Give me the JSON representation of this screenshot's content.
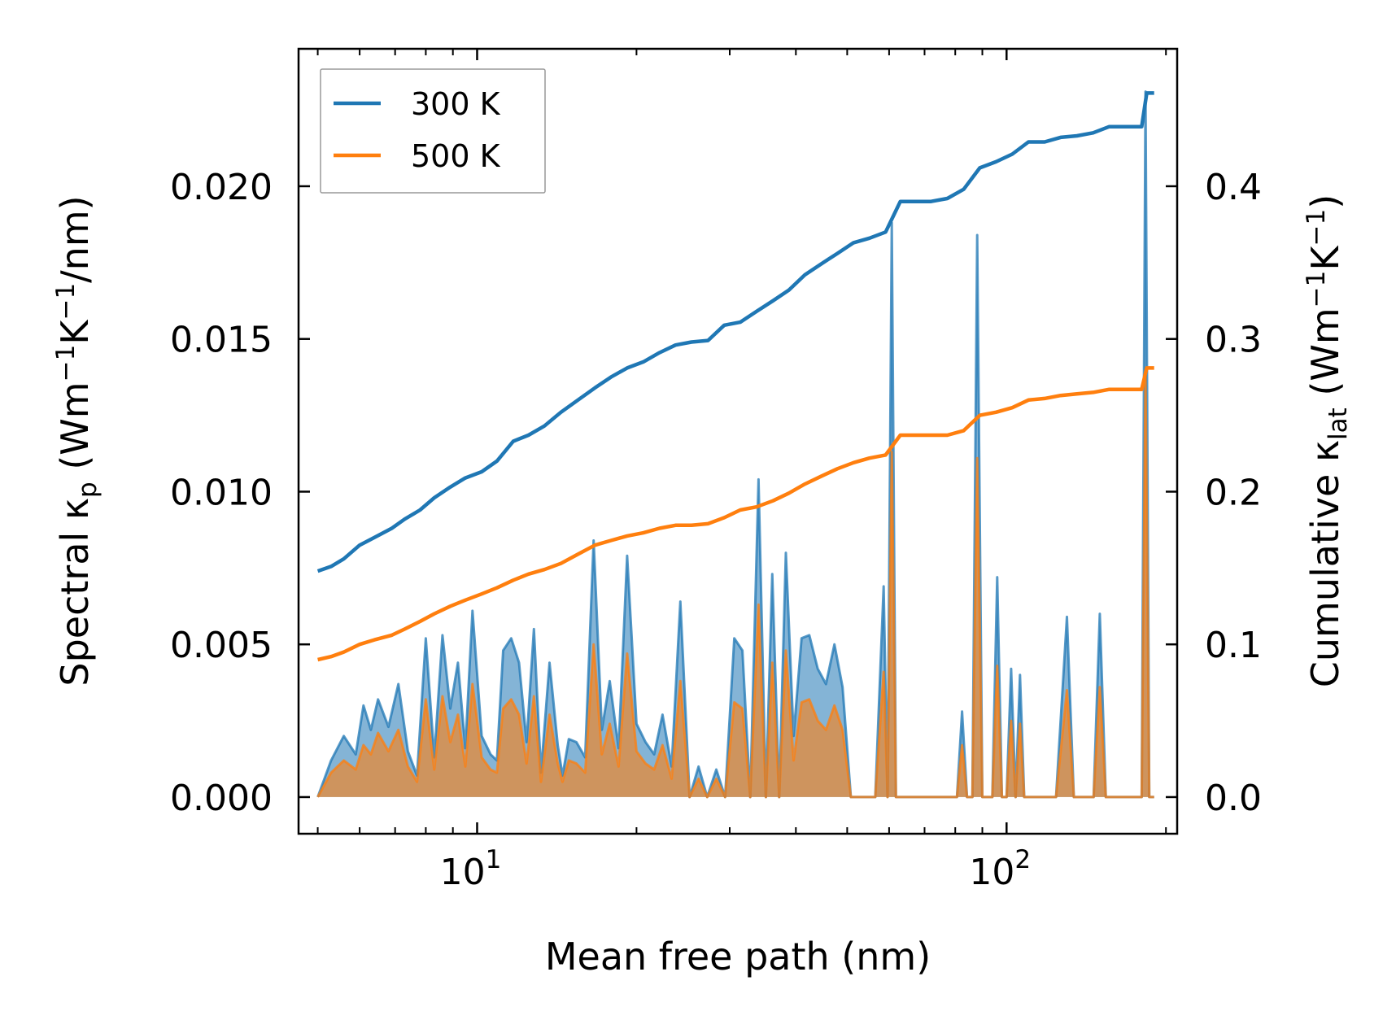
{
  "chart_data": {
    "type": "line",
    "xlabel": "Mean free path (nm)",
    "ylabel_left": {
      "main": "Spectral κ",
      "sub": "p",
      "unit_open": " (Wm",
      "sup1": "−1",
      "unit_k": "K",
      "sup2": "−1",
      "unit_close": "/nm)"
    },
    "ylabel_right": {
      "main": "Cumulative κ",
      "sub": "lat",
      "unit_open": " (Wm",
      "sup1": "−1",
      "unit_k": "K",
      "sup2": "−1",
      "unit_close": ")"
    },
    "x_scale": "log",
    "xlim": [
      4.6,
      210
    ],
    "ylim_left": [
      -0.0012,
      0.0245
    ],
    "ylim_right": [
      -0.024,
      0.49
    ],
    "x_major_ticks": [
      {
        "value": 10,
        "base": "10",
        "exp": "1"
      },
      {
        "value": 100,
        "base": "10",
        "exp": "2"
      }
    ],
    "y_left_ticks": [
      {
        "value": 0.0,
        "label": "0.000"
      },
      {
        "value": 0.005,
        "label": "0.005"
      },
      {
        "value": 0.01,
        "label": "0.010"
      },
      {
        "value": 0.015,
        "label": "0.015"
      },
      {
        "value": 0.02,
        "label": "0.020"
      }
    ],
    "y_right_ticks": [
      {
        "value": 0.0,
        "label": "0.0"
      },
      {
        "value": 0.1,
        "label": "0.1"
      },
      {
        "value": 0.2,
        "label": "0.2"
      },
      {
        "value": 0.3,
        "label": "0.3"
      },
      {
        "value": 0.4,
        "label": "0.4"
      }
    ],
    "legend": {
      "position": "upper left",
      "entries": [
        {
          "name": "300 K",
          "color": "#1f77b4"
        },
        {
          "name": "500 K",
          "color": "#ff7f0e"
        }
      ]
    },
    "series": [
      {
        "name": "300 K",
        "color": "#1f77b4",
        "cumulative_right_axis": {
          "x": [
            5.0,
            5.3,
            5.6,
            6.0,
            6.4,
            6.9,
            7.3,
            7.8,
            8.3,
            8.9,
            9.5,
            10.2,
            10.9,
            11.7,
            12.5,
            13.4,
            14.4,
            15.5,
            16.7,
            17.9,
            19.2,
            20.6,
            22.1,
            23.7,
            25.4,
            27.3,
            29.3,
            31.4,
            33.7,
            36.2,
            38.8,
            41.6,
            44.6,
            47.9,
            51.4,
            55.1,
            59.1,
            63.0,
            67.0,
            72.0,
            77.3,
            83.0,
            89.0,
            95.5,
            102.5,
            110.0,
            118.0,
            126.5,
            135.8,
            145.7,
            156.3,
            167.7,
            180.0,
            184.0,
            190.0
          ],
          "y": [
            0.148,
            0.151,
            0.156,
            0.165,
            0.17,
            0.176,
            0.182,
            0.188,
            0.196,
            0.203,
            0.209,
            0.213,
            0.22,
            0.233,
            0.237,
            0.243,
            0.252,
            0.26,
            0.268,
            0.275,
            0.281,
            0.285,
            0.291,
            0.296,
            0.298,
            0.299,
            0.309,
            0.311,
            0.318,
            0.325,
            0.332,
            0.342,
            0.349,
            0.356,
            0.363,
            0.366,
            0.37,
            0.39,
            0.39,
            0.39,
            0.392,
            0.398,
            0.412,
            0.416,
            0.421,
            0.429,
            0.429,
            0.432,
            0.433,
            0.435,
            0.439,
            0.439,
            0.439,
            0.461,
            0.461
          ]
        },
        "spectral_left_axis": {
          "x": [
            5.0,
            5.3,
            5.6,
            5.9,
            6.1,
            6.3,
            6.5,
            6.8,
            7.1,
            7.4,
            7.7,
            8.0,
            8.3,
            8.6,
            8.9,
            9.2,
            9.5,
            9.8,
            10.2,
            10.6,
            10.9,
            11.2,
            11.6,
            12.0,
            12.4,
            12.8,
            13.2,
            13.7,
            14.2,
            14.5,
            14.9,
            15.4,
            16.0,
            16.6,
            17.2,
            17.8,
            18.5,
            19.2,
            20.0,
            20.8,
            21.6,
            22.4,
            23.3,
            24.2,
            25.2,
            26.2,
            27.2,
            28.3,
            29.4,
            30.6,
            31.7,
            32.8,
            34.0,
            35.1,
            36.1,
            37.2,
            38.3,
            39.6,
            41.0,
            42.4,
            44.0,
            45.6,
            47.3,
            49.0,
            50.8,
            52.6,
            54.5,
            56.5,
            58.6,
            59.6,
            60.7,
            61.8,
            62.9,
            64.1,
            65.3,
            68.0,
            72.0,
            76.2,
            80.6,
            82.4,
            84.2,
            86.2,
            88.0,
            90.0,
            92.0,
            94.0,
            96.0,
            98.0,
            100.0,
            102.0,
            104.0,
            106.0,
            108.0,
            110.0,
            112.0,
            114.0,
            118.0,
            124.0,
            130.0,
            134.0,
            138.0,
            142.0,
            146.0,
            150.0,
            154.0,
            158.0,
            164.0,
            170.0,
            176.0,
            180.0,
            183.0,
            186.0,
            189.0,
            190.0
          ],
          "y": [
            0.0,
            0.0012,
            0.002,
            0.0014,
            0.003,
            0.0022,
            0.0032,
            0.0023,
            0.0037,
            0.0015,
            0.0007,
            0.0052,
            0.0013,
            0.0053,
            0.0029,
            0.0044,
            0.0016,
            0.0061,
            0.002,
            0.0014,
            0.0012,
            0.0048,
            0.0052,
            0.0044,
            0.0018,
            0.0055,
            0.0008,
            0.0044,
            0.0017,
            0.0007,
            0.0019,
            0.0018,
            0.0013,
            0.0084,
            0.0022,
            0.0038,
            0.0016,
            0.0079,
            0.0024,
            0.0018,
            0.0014,
            0.0027,
            0.001,
            0.0064,
            0.0,
            0.001,
            0.0,
            0.0009,
            0.0,
            0.0052,
            0.0048,
            0.0,
            0.0104,
            0.0,
            0.0073,
            0.0,
            0.008,
            0.002,
            0.0052,
            0.0053,
            0.0042,
            0.0037,
            0.005,
            0.0036,
            0.0,
            0.0,
            0.0,
            0.0,
            0.0069,
            0.0,
            0.0188,
            0.0,
            0.0,
            0.0,
            0.0,
            0.0,
            0.0,
            0.0,
            0.0,
            0.0028,
            0.0,
            0.0,
            0.0184,
            0.0,
            0.0,
            0.0,
            0.0072,
            0.0,
            0.0,
            0.0042,
            0.0,
            0.004,
            0.0,
            0.0,
            0.0,
            0.0,
            0.0,
            0.0,
            0.0059,
            0.0,
            0.0,
            0.0,
            0.0,
            0.006,
            0.0,
            0.0,
            0.0,
            0.0,
            0.0,
            0.0,
            0.0231,
            0.0,
            0.0,
            0.0
          ]
        }
      },
      {
        "name": "500 K",
        "color": "#ff7f0e",
        "cumulative_right_axis": {
          "x": [
            5.0,
            5.3,
            5.6,
            6.0,
            6.4,
            6.9,
            7.3,
            7.8,
            8.3,
            8.9,
            9.5,
            10.2,
            10.9,
            11.7,
            12.5,
            13.4,
            14.4,
            15.5,
            16.7,
            17.9,
            19.2,
            20.6,
            22.1,
            23.7,
            25.4,
            27.3,
            29.3,
            31.4,
            33.7,
            36.2,
            38.8,
            41.6,
            44.6,
            47.9,
            51.4,
            55.1,
            59.1,
            63.0,
            67.0,
            72.0,
            77.3,
            83.0,
            89.0,
            95.5,
            102.5,
            110.0,
            118.0,
            126.5,
            135.8,
            145.7,
            156.3,
            167.7,
            180.0,
            184.0,
            190.0
          ],
          "y": [
            0.09,
            0.092,
            0.095,
            0.1,
            0.103,
            0.106,
            0.11,
            0.115,
            0.12,
            0.125,
            0.129,
            0.133,
            0.137,
            0.142,
            0.146,
            0.149,
            0.153,
            0.159,
            0.165,
            0.168,
            0.171,
            0.173,
            0.176,
            0.178,
            0.178,
            0.179,
            0.183,
            0.188,
            0.19,
            0.194,
            0.199,
            0.205,
            0.21,
            0.215,
            0.219,
            0.222,
            0.224,
            0.237,
            0.237,
            0.237,
            0.237,
            0.24,
            0.25,
            0.252,
            0.255,
            0.26,
            0.261,
            0.263,
            0.264,
            0.265,
            0.267,
            0.267,
            0.267,
            0.281,
            0.281
          ]
        },
        "spectral_left_axis": {
          "x": [
            5.0,
            5.3,
            5.6,
            5.9,
            6.1,
            6.3,
            6.5,
            6.8,
            7.1,
            7.4,
            7.7,
            8.0,
            8.3,
            8.6,
            8.9,
            9.2,
            9.5,
            9.8,
            10.2,
            10.6,
            10.9,
            11.2,
            11.6,
            12.0,
            12.4,
            12.8,
            13.2,
            13.7,
            14.2,
            14.5,
            14.9,
            15.4,
            16.0,
            16.6,
            17.2,
            17.8,
            18.5,
            19.2,
            20.0,
            20.8,
            21.6,
            22.4,
            23.3,
            24.2,
            25.2,
            26.2,
            27.2,
            28.3,
            29.4,
            30.6,
            31.7,
            32.8,
            34.0,
            35.1,
            36.1,
            37.2,
            38.3,
            39.6,
            41.0,
            42.4,
            44.0,
            45.6,
            47.3,
            49.0,
            50.8,
            52.6,
            54.5,
            56.5,
            58.6,
            59.6,
            60.7,
            61.8,
            62.9,
            64.1,
            65.3,
            68.0,
            72.0,
            76.2,
            80.6,
            82.4,
            84.2,
            86.2,
            88.0,
            90.0,
            92.0,
            94.0,
            96.0,
            98.0,
            100.0,
            102.0,
            104.0,
            106.0,
            108.0,
            110.0,
            112.0,
            114.0,
            118.0,
            124.0,
            130.0,
            134.0,
            138.0,
            142.0,
            146.0,
            150.0,
            154.0,
            158.0,
            164.0,
            170.0,
            176.0,
            180.0,
            183.0,
            186.0,
            189.0,
            190.0
          ],
          "y": [
            0.0,
            0.0008,
            0.0012,
            0.0009,
            0.0017,
            0.0014,
            0.0021,
            0.0015,
            0.0022,
            0.001,
            0.0005,
            0.0032,
            0.0009,
            0.0033,
            0.0018,
            0.0027,
            0.001,
            0.0037,
            0.0013,
            0.0009,
            0.0008,
            0.0029,
            0.0032,
            0.0027,
            0.0011,
            0.0033,
            0.0005,
            0.0027,
            0.0011,
            0.0005,
            0.0012,
            0.0011,
            0.0008,
            0.005,
            0.0014,
            0.0024,
            0.001,
            0.0047,
            0.0015,
            0.0011,
            0.0009,
            0.0017,
            0.0006,
            0.0038,
            0.0,
            0.0006,
            0.0,
            0.0006,
            0.0,
            0.0031,
            0.0029,
            0.0,
            0.0063,
            0.0,
            0.0044,
            0.0,
            0.0048,
            0.0012,
            0.0031,
            0.0032,
            0.0025,
            0.0022,
            0.003,
            0.0022,
            0.0,
            0.0,
            0.0,
            0.0,
            0.0041,
            0.0,
            0.0113,
            0.0,
            0.0,
            0.0,
            0.0,
            0.0,
            0.0,
            0.0,
            0.0,
            0.0017,
            0.0,
            0.0,
            0.0111,
            0.0,
            0.0,
            0.0,
            0.0043,
            0.0,
            0.0,
            0.0025,
            0.0,
            0.0024,
            0.0,
            0.0,
            0.0,
            0.0,
            0.0,
            0.0,
            0.0035,
            0.0,
            0.0,
            0.0,
            0.0,
            0.0036,
            0.0,
            0.0,
            0.0,
            0.0,
            0.0,
            0.0,
            0.0139,
            0.0,
            0.0,
            0.0
          ]
        }
      }
    ]
  }
}
